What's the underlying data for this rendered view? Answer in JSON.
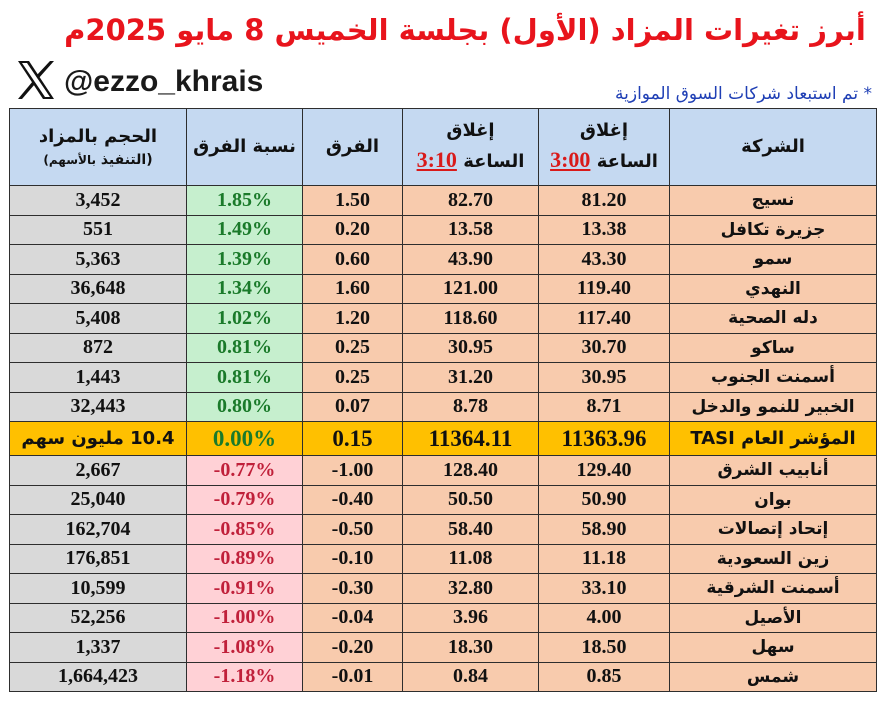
{
  "title": "أبرز تغيرات المزاد (الأول) بجلسة الخميس 8 مايو 2025م",
  "handle": "@ezzo_khrais",
  "note": "* تم استبعاد شركات السوق الموازية",
  "colors": {
    "title": "#e8141c",
    "note": "#1f3fb5",
    "positive": "#1a7a2a",
    "negative": "#c0203a",
    "index_row": "#ffc000"
  },
  "headers": {
    "company": "الشركة",
    "close_300_label": "إغلاق",
    "close_300_time_label": "الساعة",
    "close_300_time": "3:00",
    "close_310_label": "إغلاق",
    "close_310_time_label": "الساعة",
    "close_310_time": "3:10",
    "diff": "الفرق",
    "pct": "نسبة الفرق",
    "volume_line1": "الحجم بالمزاد",
    "volume_line2": "(التنفيذ",
    "volume_line2_small": "بالأسهم)"
  },
  "rows": [
    {
      "company": "نسيج",
      "close_300": "81.20",
      "close_310": "82.70",
      "diff": "1.50",
      "pct": "1.85%",
      "volume": "3,452",
      "type": "pos"
    },
    {
      "company": "جزيرة تكافل",
      "close_300": "13.38",
      "close_310": "13.58",
      "diff": "0.20",
      "pct": "1.49%",
      "volume": "551",
      "type": "pos"
    },
    {
      "company": "سمو",
      "close_300": "43.30",
      "close_310": "43.90",
      "diff": "0.60",
      "pct": "1.39%",
      "volume": "5,363",
      "type": "pos"
    },
    {
      "company": "النهدي",
      "close_300": "119.40",
      "close_310": "121.00",
      "diff": "1.60",
      "pct": "1.34%",
      "volume": "36,648",
      "type": "pos"
    },
    {
      "company": "دله الصحية",
      "close_300": "117.40",
      "close_310": "118.60",
      "diff": "1.20",
      "pct": "1.02%",
      "volume": "5,408",
      "type": "pos"
    },
    {
      "company": "ساكو",
      "close_300": "30.70",
      "close_310": "30.95",
      "diff": "0.25",
      "pct": "0.81%",
      "volume": "872",
      "type": "pos"
    },
    {
      "company": "أسمنت الجنوب",
      "close_300": "30.95",
      "close_310": "31.20",
      "diff": "0.25",
      "pct": "0.81%",
      "volume": "1,443",
      "type": "pos"
    },
    {
      "company": "الخبير للنمو والدخل",
      "close_300": "8.71",
      "close_310": "8.78",
      "diff": "0.07",
      "pct": "0.80%",
      "volume": "32,443",
      "type": "pos"
    },
    {
      "company": "المؤشر العام TASI",
      "close_300": "11363.96",
      "close_310": "11364.11",
      "diff": "0.15",
      "pct": "0.00%",
      "volume": "10.4 مليون سهم",
      "type": "index"
    },
    {
      "company": "أنابيب الشرق",
      "close_300": "129.40",
      "close_310": "128.40",
      "diff": "-1.00",
      "pct": "-0.77%",
      "volume": "2,667",
      "type": "neg"
    },
    {
      "company": "بوان",
      "close_300": "50.90",
      "close_310": "50.50",
      "diff": "-0.40",
      "pct": "-0.79%",
      "volume": "25,040",
      "type": "neg"
    },
    {
      "company": "إتحاد إتصالات",
      "close_300": "58.90",
      "close_310": "58.40",
      "diff": "-0.50",
      "pct": "-0.85%",
      "volume": "162,704",
      "type": "neg"
    },
    {
      "company": "زين السعودية",
      "close_300": "11.18",
      "close_310": "11.08",
      "diff": "-0.10",
      "pct": "-0.89%",
      "volume": "176,851",
      "type": "neg"
    },
    {
      "company": "أسمنت الشرقية",
      "close_300": "33.10",
      "close_310": "32.80",
      "diff": "-0.30",
      "pct": "-0.91%",
      "volume": "10,599",
      "type": "neg"
    },
    {
      "company": "الأصيل",
      "close_300": "4.00",
      "close_310": "3.96",
      "diff": "-0.04",
      "pct": "-1.00%",
      "volume": "52,256",
      "type": "neg"
    },
    {
      "company": "سهل",
      "close_300": "18.50",
      "close_310": "18.30",
      "diff": "-0.20",
      "pct": "-1.08%",
      "volume": "1,337",
      "type": "neg"
    },
    {
      "company": "شمس",
      "close_300": "0.85",
      "close_310": "0.84",
      "diff": "-0.01",
      "pct": "-1.18%",
      "volume": "1,664,423",
      "type": "neg"
    }
  ]
}
